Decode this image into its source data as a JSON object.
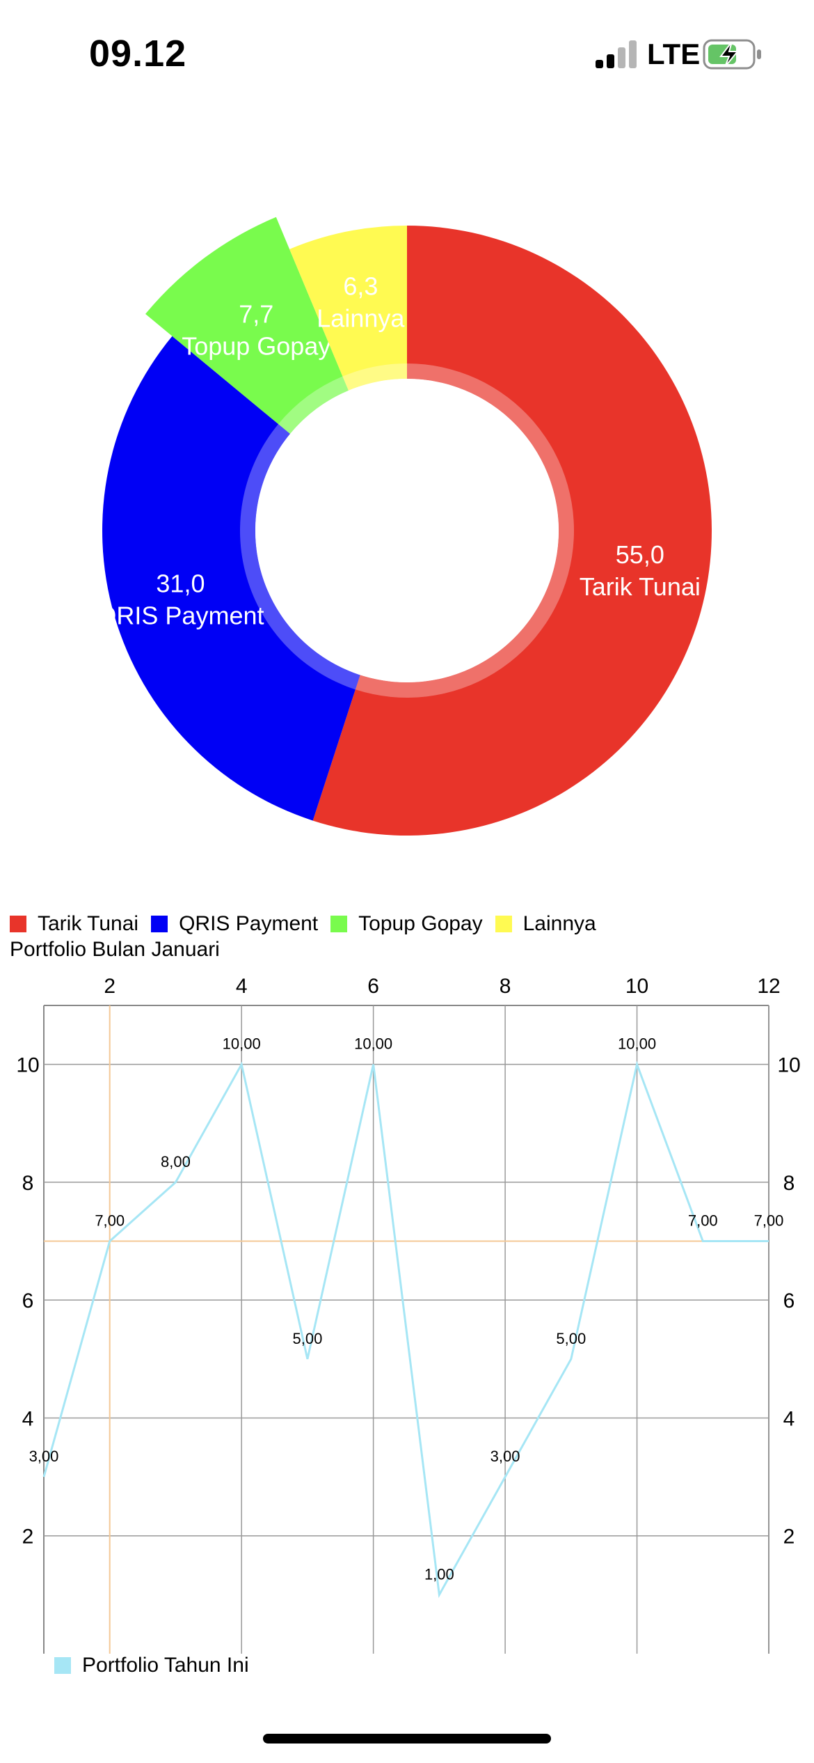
{
  "status": {
    "time": "09.12",
    "network": "LTE",
    "signal_icon": "cellular-signal-icon",
    "battery_icon": "battery-charging-icon",
    "battery_color": "#65c466"
  },
  "legend_items": [
    {
      "label": "Tarik Tunai",
      "color": "#e8342a"
    },
    {
      "label": "QRIS Payment",
      "color": "#0000f5"
    },
    {
      "label": "Topup Gopay",
      "color": "#79fb4d"
    },
    {
      "label": "Lainnya",
      "color": "#fffa52"
    }
  ],
  "line_chart_title": "Portfolio Bulan Januari",
  "line_legend_label": "Portfolio Tahun Ini",
  "chart_data": [
    {
      "type": "pie",
      "style": "donut",
      "slices": [
        {
          "label": "Tarik Tunai",
          "value": 55.0,
          "value_label": "55,0",
          "color": "#e8342a"
        },
        {
          "label": "QRIS Payment",
          "value": 31.0,
          "value_label": "31,0",
          "color": "#0000f5"
        },
        {
          "label": "Topup Gopay",
          "value": 7.7,
          "value_label": "7,7",
          "color": "#79fb4d",
          "highlighted": true
        },
        {
          "label": "Lainnya",
          "value": 6.3,
          "value_label": "6,3",
          "color": "#fffa52"
        }
      ],
      "legend": "bottom-left"
    },
    {
      "type": "line",
      "title": "Portfolio Bulan Januari",
      "x": [
        1,
        2,
        3,
        4,
        5,
        6,
        7,
        8,
        9,
        10,
        11,
        12
      ],
      "series": [
        {
          "name": "Portfolio Tahun Ini",
          "values": [
            3,
            7,
            8,
            10,
            5,
            10,
            1,
            3,
            5,
            10,
            7,
            7
          ],
          "value_labels": [
            "3,00",
            "7,00",
            "8,00",
            "10,00",
            "5,00",
            "10,00",
            "1,00",
            "3,00",
            "5,00",
            "10,00",
            "7,00",
            "7,00"
          ],
          "color": "#a6e6f5"
        }
      ],
      "xlim": [
        1,
        12
      ],
      "ylim": [
        0,
        11
      ],
      "x_ticks": [
        "2",
        "4",
        "6",
        "8",
        "10",
        "12"
      ],
      "y_ticks": [
        "2",
        "4",
        "6",
        "8",
        "10"
      ],
      "x_axis_position": "top",
      "y_axis_labels": "left-and-right",
      "highlight": {
        "x": 2,
        "y": 7,
        "color": "#f4c896"
      },
      "grid": true,
      "legend": "bottom-left"
    }
  ]
}
